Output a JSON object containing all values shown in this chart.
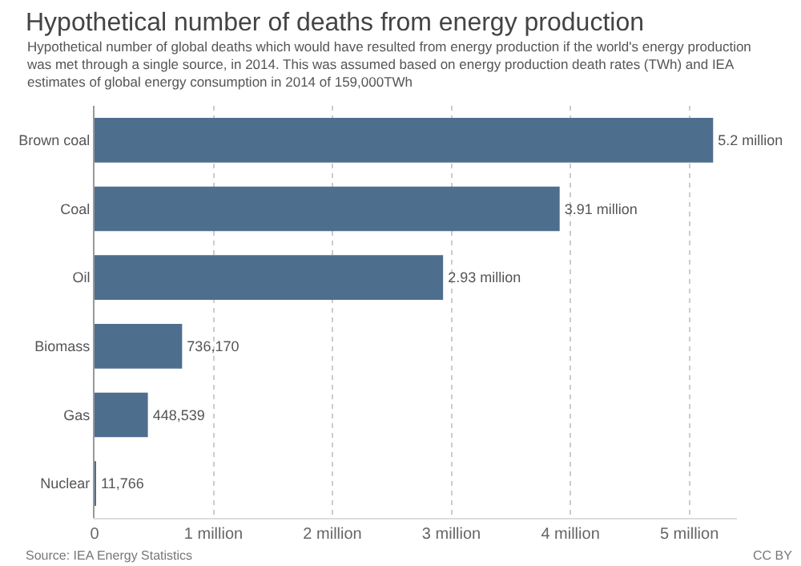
{
  "chart_data": {
    "type": "bar",
    "orientation": "horizontal",
    "title": "Hypothetical number of deaths from energy production",
    "subtitle": "Hypothetical number of global deaths which would have resulted from energy production if the world's energy production was met through a single source, in 2014. This was assumed based on energy production death rates (TWh) and IEA estimates of global energy consumption in 2014 of 159,000TWh",
    "categories": [
      "Brown coal",
      "Coal",
      "Oil",
      "Biomass",
      "Gas",
      "Nuclear"
    ],
    "values": [
      5200000,
      3910000,
      2930000,
      736170,
      448539,
      11766
    ],
    "value_labels": [
      "5.2 million",
      "3.91 million",
      "2.93 million",
      "736,170",
      "448,539",
      "11,766"
    ],
    "color": "#4e6e8e",
    "xlim": [
      0,
      5400000
    ],
    "xticks": [
      0,
      {
        "value": 1000000,
        "label": "1 million"
      },
      {
        "value": 2000000,
        "label": "2 million"
      },
      {
        "value": 3000000,
        "label": "3 million"
      },
      {
        "value": 4000000,
        "label": "4 million"
      },
      {
        "value": 5000000,
        "label": "5 million"
      }
    ],
    "grid": "x",
    "annotations": [
      "Source: IEA Energy Statistics",
      "CC BY"
    ]
  }
}
